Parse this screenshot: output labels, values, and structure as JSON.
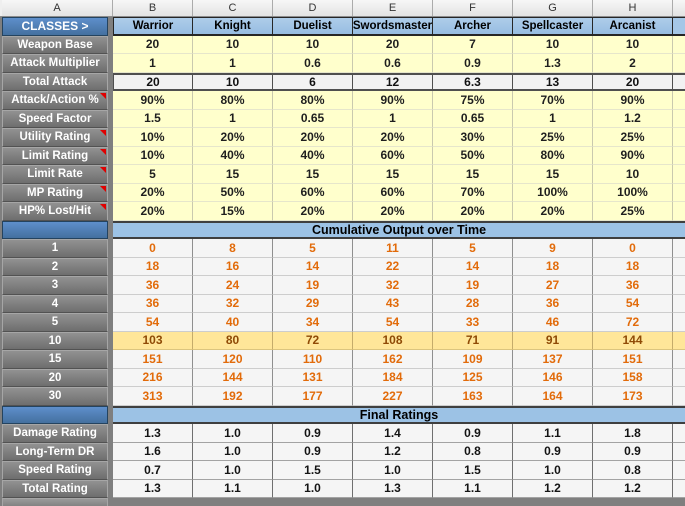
{
  "column_headers": [
    "A",
    "B",
    "C",
    "D",
    "E",
    "F",
    "G",
    "H"
  ],
  "colors": {
    "header_blue": "#4e81bd",
    "class_header_blue": "#9dc3e6",
    "section_header_blue": "#9cc2e5",
    "input_yellow": "#ffffcc",
    "highlight_yellow": "#ffe699",
    "orange_text": "#e26b0a",
    "highlight_text": "#8f4a06",
    "label_gray": "#7b7b7b",
    "comment_red": "#e00000"
  },
  "table": {
    "class_row": {
      "label": "CLASSES >",
      "classes": [
        "Warrior",
        "Knight",
        "Duelist",
        "Swordsmaster",
        "Archer",
        "Spellcaster",
        "Arcanist"
      ]
    },
    "stat_rows": [
      {
        "label": "Weapon Base",
        "style": "yellow",
        "comment": false,
        "values": [
          "20",
          "10",
          "10",
          "20",
          "7",
          "10",
          "10"
        ]
      },
      {
        "label": "Attack Multiplier",
        "style": "yellow",
        "comment": false,
        "values": [
          "1",
          "1",
          "0.6",
          "0.6",
          "0.9",
          "1.3",
          "2"
        ]
      },
      {
        "label": "Total Attack",
        "style": "total",
        "comment": false,
        "values": [
          "20",
          "10",
          "6",
          "12",
          "6.3",
          "13",
          "20"
        ]
      },
      {
        "label": "Attack/Action %",
        "style": "yellow",
        "comment": true,
        "values": [
          "90%",
          "80%",
          "80%",
          "90%",
          "75%",
          "70%",
          "90%"
        ]
      },
      {
        "label": "Speed Factor",
        "style": "yellow",
        "comment": false,
        "values": [
          "1.5",
          "1",
          "0.65",
          "1",
          "0.65",
          "1",
          "1.2"
        ]
      },
      {
        "label": "Utility Rating",
        "style": "yellow",
        "comment": true,
        "values": [
          "10%",
          "20%",
          "20%",
          "20%",
          "30%",
          "25%",
          "25%"
        ]
      },
      {
        "label": "Limit Rating",
        "style": "yellow",
        "comment": true,
        "values": [
          "10%",
          "40%",
          "40%",
          "60%",
          "50%",
          "80%",
          "90%"
        ]
      },
      {
        "label": "Limit Rate",
        "style": "yellow",
        "comment": true,
        "values": [
          "5",
          "15",
          "15",
          "15",
          "15",
          "15",
          "10"
        ]
      },
      {
        "label": "MP Rating",
        "style": "yellow",
        "comment": true,
        "values": [
          "20%",
          "50%",
          "60%",
          "60%",
          "70%",
          "100%",
          "100%"
        ]
      },
      {
        "label": "HP% Lost/Hit",
        "style": "yellow",
        "comment": true,
        "values": [
          "20%",
          "15%",
          "20%",
          "20%",
          "20%",
          "20%",
          "25%"
        ]
      }
    ],
    "cumulative_section": {
      "title": "Cumulative Output over Time",
      "rows": [
        {
          "label": "1",
          "style": "orange",
          "values": [
            "0",
            "8",
            "5",
            "11",
            "5",
            "9",
            "0"
          ]
        },
        {
          "label": "2",
          "style": "orange",
          "values": [
            "18",
            "16",
            "14",
            "22",
            "14",
            "18",
            "18"
          ]
        },
        {
          "label": "3",
          "style": "orange",
          "values": [
            "36",
            "24",
            "19",
            "32",
            "19",
            "27",
            "36"
          ]
        },
        {
          "label": "4",
          "style": "orange",
          "values": [
            "36",
            "32",
            "29",
            "43",
            "28",
            "36",
            "54"
          ]
        },
        {
          "label": "5",
          "style": "orange",
          "values": [
            "54",
            "40",
            "34",
            "54",
            "33",
            "46",
            "72"
          ]
        },
        {
          "label": "10",
          "style": "highlight",
          "values": [
            "103",
            "80",
            "72",
            "108",
            "71",
            "91",
            "144"
          ]
        },
        {
          "label": "15",
          "style": "orange",
          "values": [
            "151",
            "120",
            "110",
            "162",
            "109",
            "137",
            "151"
          ]
        },
        {
          "label": "20",
          "style": "orange",
          "values": [
            "216",
            "144",
            "131",
            "184",
            "125",
            "146",
            "158"
          ]
        },
        {
          "label": "30",
          "style": "orange",
          "values": [
            "313",
            "192",
            "177",
            "227",
            "163",
            "164",
            "173"
          ]
        }
      ]
    },
    "final_section": {
      "title": "Final Ratings",
      "rows": [
        {
          "label": "Damage Rating",
          "style": "rating",
          "values": [
            "1.3",
            "1.0",
            "0.9",
            "1.4",
            "0.9",
            "1.1",
            "1.8"
          ]
        },
        {
          "label": "Long-Term DR",
          "style": "rating",
          "values": [
            "1.6",
            "1.0",
            "0.9",
            "1.2",
            "0.8",
            "0.9",
            "0.9"
          ]
        },
        {
          "label": "Speed Rating",
          "style": "rating",
          "values": [
            "0.7",
            "1.0",
            "1.5",
            "1.0",
            "1.5",
            "1.0",
            "0.8"
          ]
        },
        {
          "label": "Total Rating",
          "style": "rating",
          "values": [
            "1.3",
            "1.1",
            "1.0",
            "1.3",
            "1.1",
            "1.2",
            "1.2"
          ]
        }
      ]
    }
  }
}
